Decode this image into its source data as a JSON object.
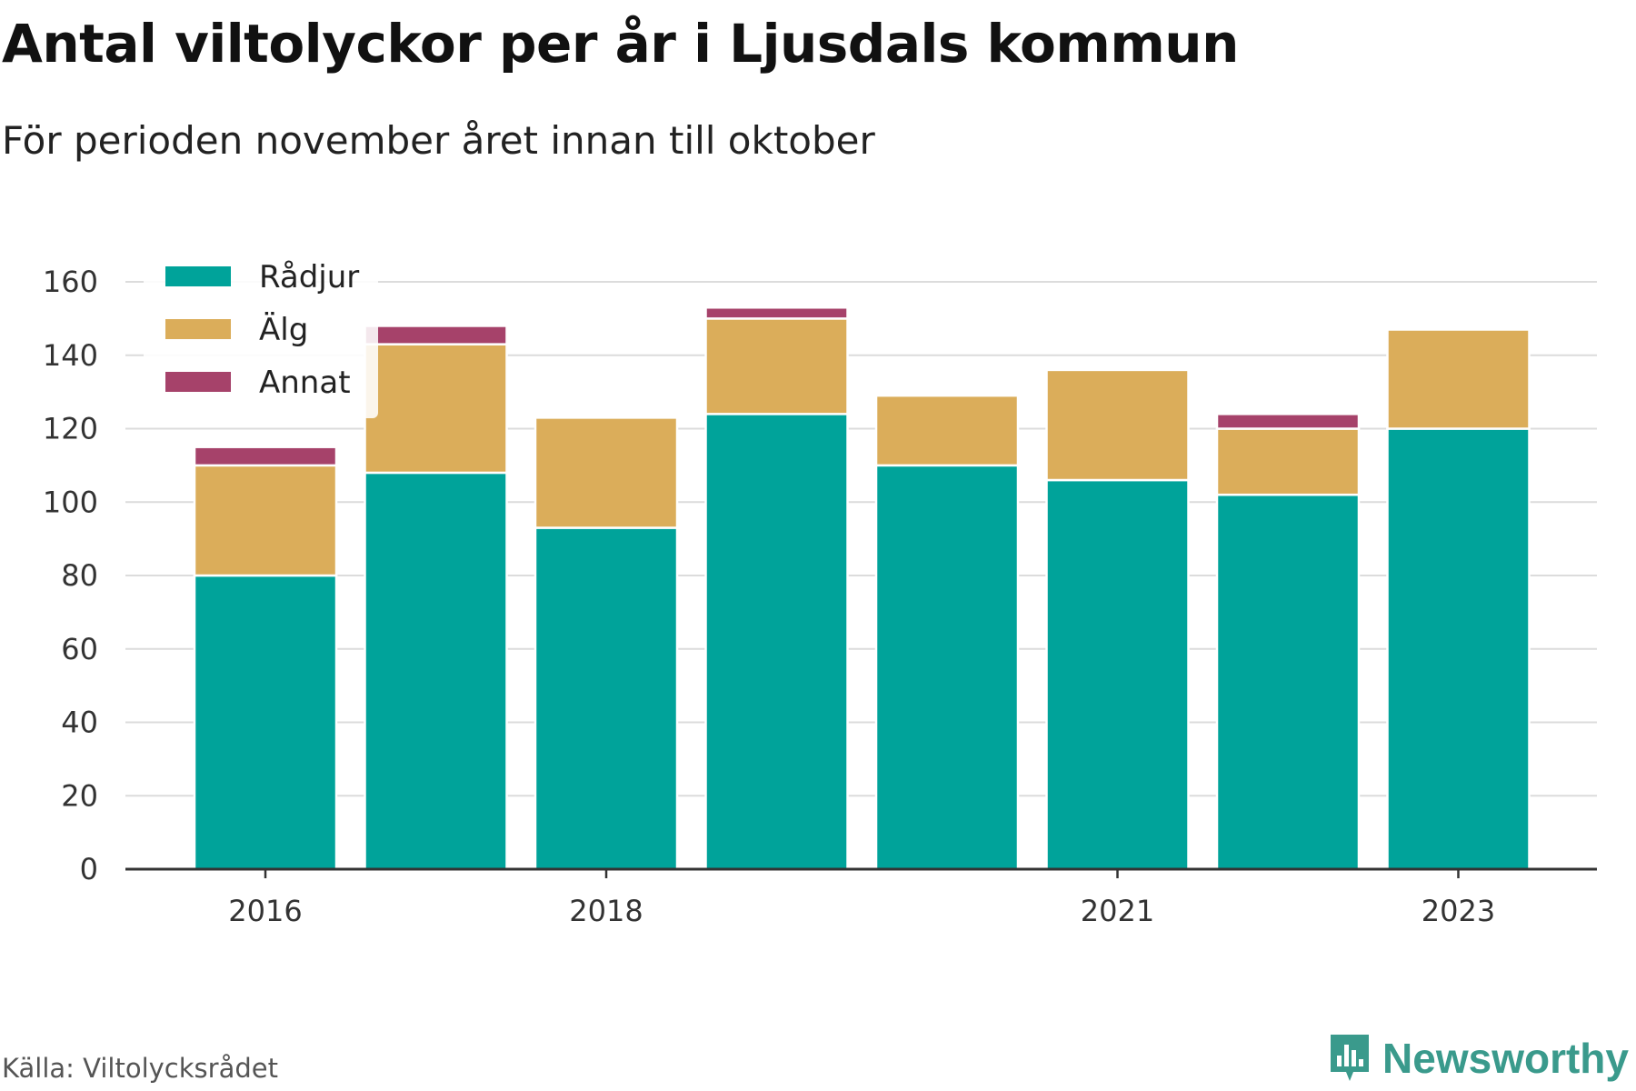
{
  "chart_data": {
    "type": "bar",
    "stacked": true,
    "title": "Antal viltolyckor per år i Ljusdals kommun",
    "subtitle": "För perioden november året innan till oktober",
    "categories": [
      "2016",
      "2017",
      "2018",
      "2019",
      "2020",
      "2021",
      "2022",
      "2023"
    ],
    "x_tick_labels": [
      "2016",
      "2018",
      "2021",
      "2023"
    ],
    "series": [
      {
        "name": "Rådjur",
        "color": "#00a39a",
        "values": [
          80,
          108,
          93,
          124,
          110,
          106,
          102,
          120
        ]
      },
      {
        "name": "Älg",
        "color": "#dbad5a",
        "values": [
          30,
          35,
          30,
          26,
          19,
          30,
          18,
          27
        ]
      },
      {
        "name": "Annat",
        "color": "#a6426a",
        "values": [
          5,
          5,
          0,
          3,
          0,
          0,
          4,
          0
        ]
      }
    ],
    "ylim": [
      0,
      160
    ],
    "y_ticks": [
      0,
      20,
      40,
      60,
      80,
      100,
      120,
      140,
      160
    ],
    "grid": true,
    "legend_position": "top-left",
    "xlabel": "",
    "ylabel": ""
  },
  "source": "Källa: Viltolycksrådet",
  "brand": "Newsworthy"
}
